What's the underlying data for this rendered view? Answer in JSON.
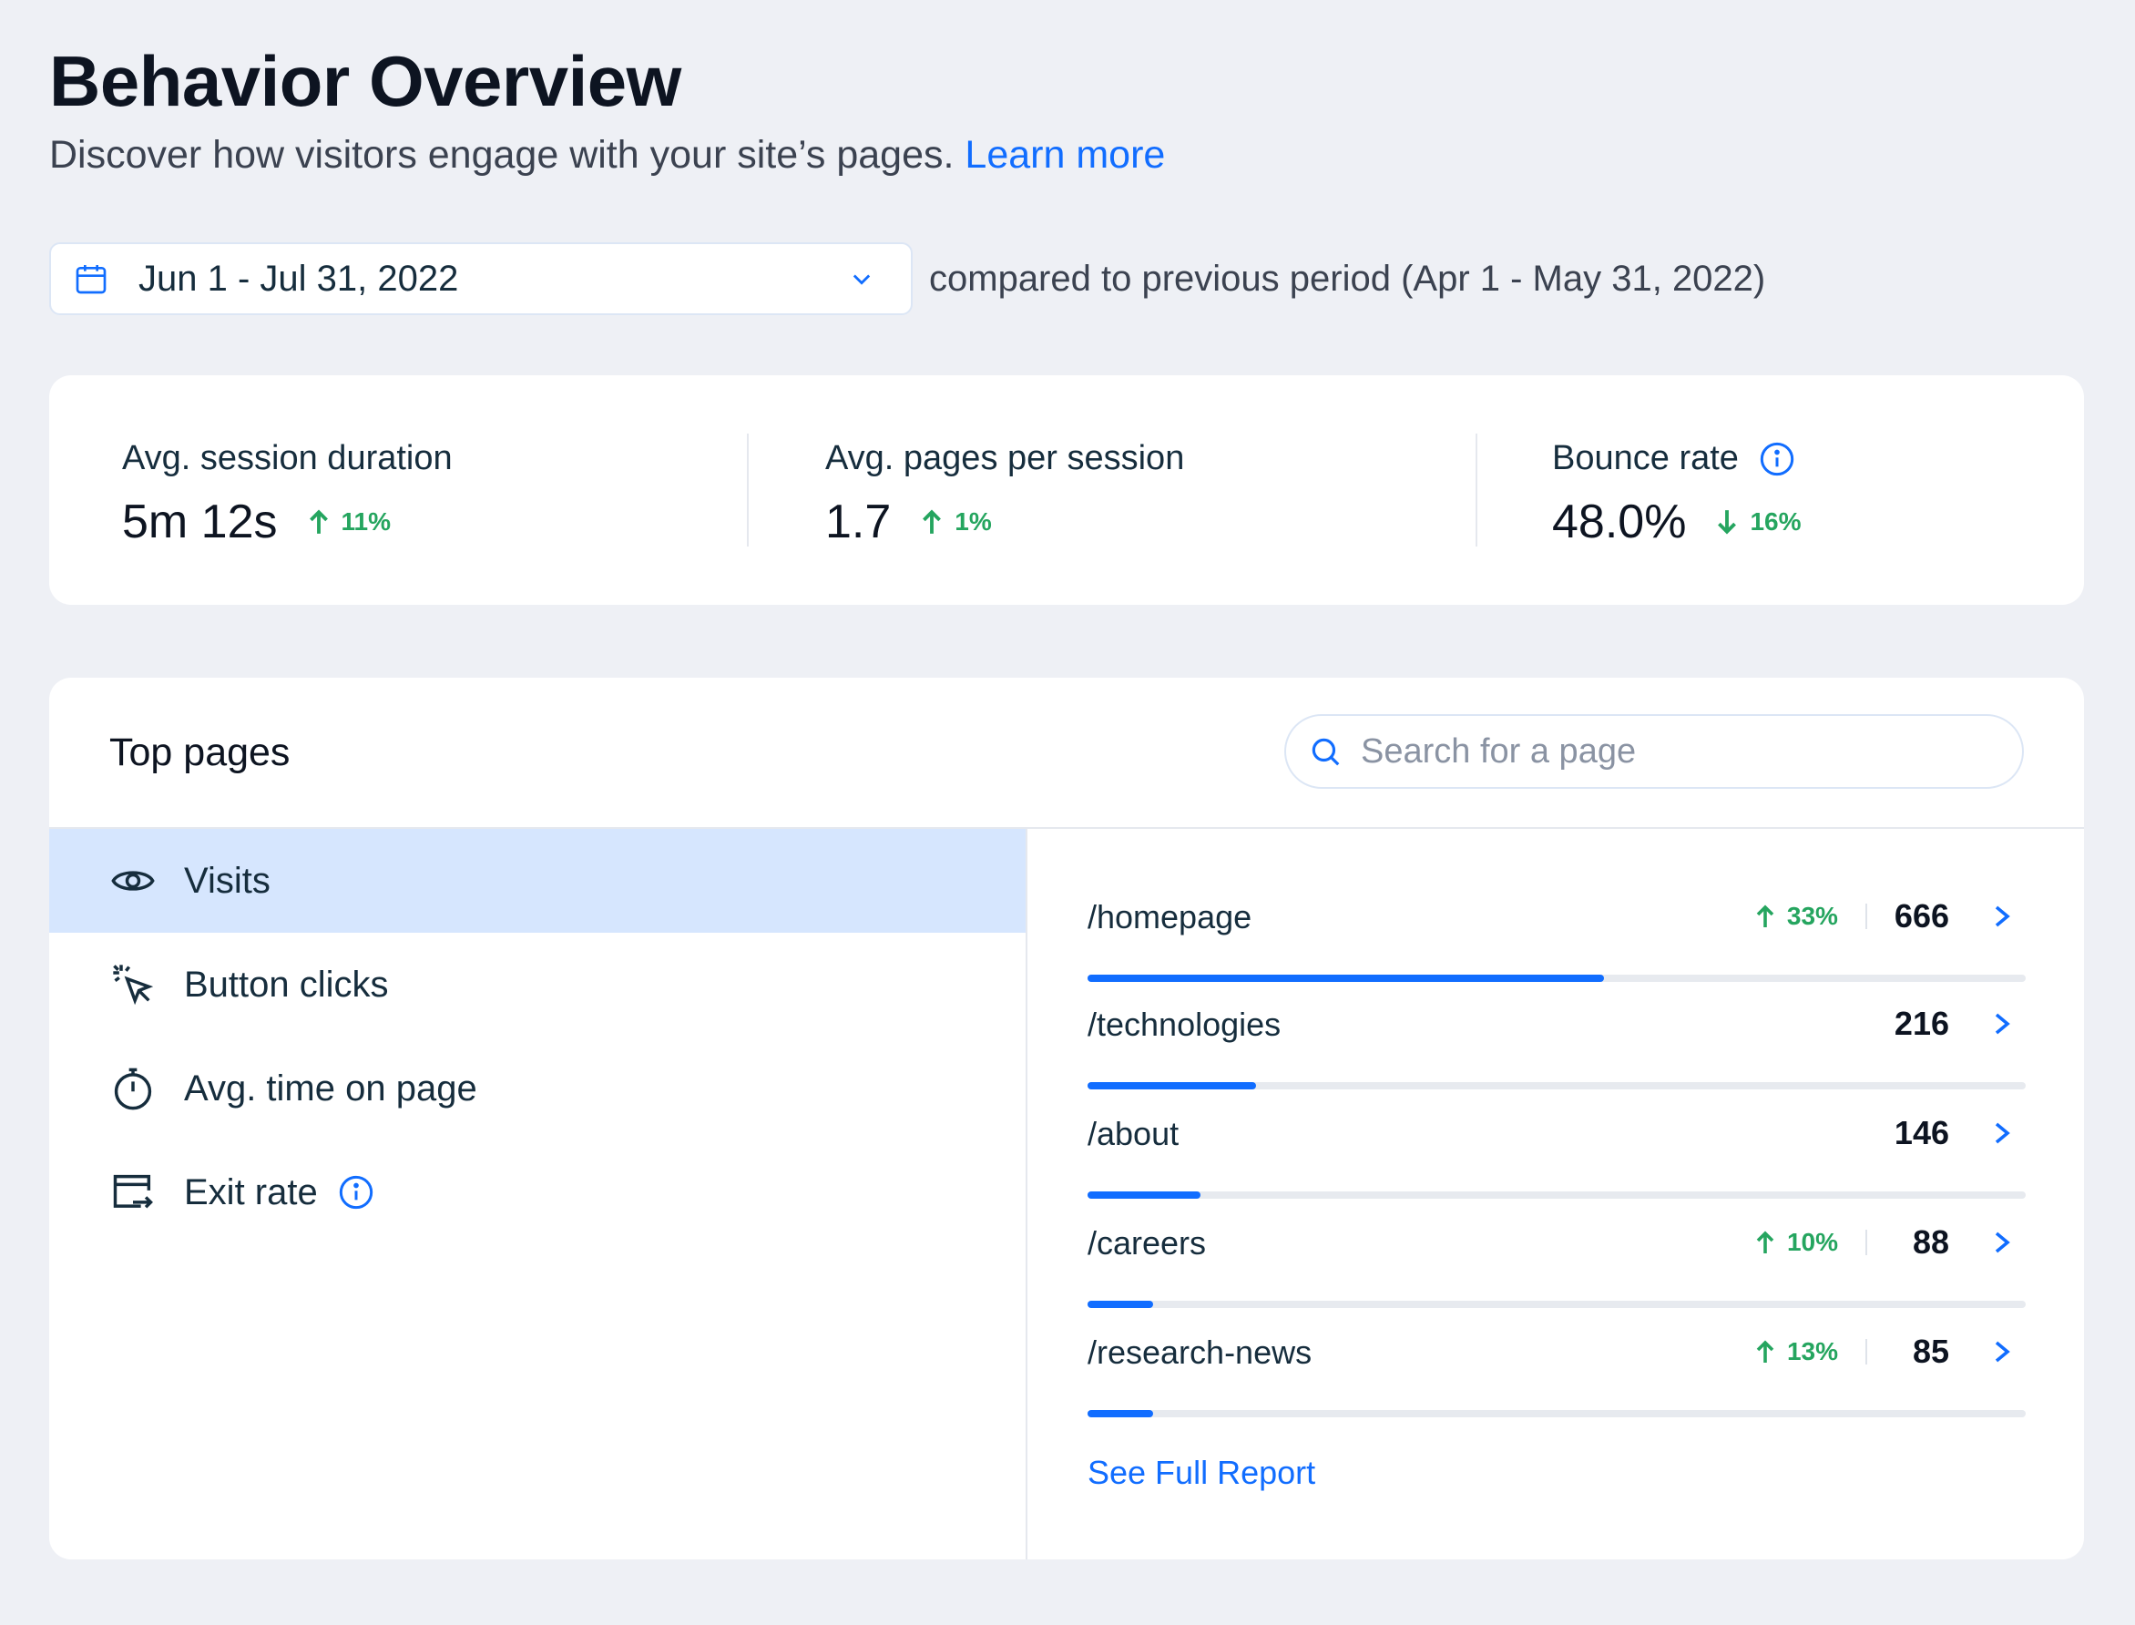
{
  "header": {
    "title": "Behavior Overview",
    "subtitle": "Discover how visitors engage with your site’s pages.",
    "learn_more": "Learn more"
  },
  "date_range": {
    "value": "Jun 1 - Jul 31, 2022",
    "comparison": "compared to previous period (Apr 1 - May 31, 2022)"
  },
  "kpis": [
    {
      "label": "Avg. session duration",
      "value": "5m 12s",
      "trend": "11%",
      "direction": "up"
    },
    {
      "label": "Avg. pages per session",
      "value": "1.7",
      "trend": "1%",
      "direction": "up"
    },
    {
      "label": "Bounce rate",
      "value": "48.0%",
      "trend": "16%",
      "direction": "down",
      "icon": "info-icon"
    }
  ],
  "top_pages": {
    "title": "Top pages",
    "search_placeholder": "Search for a page",
    "metrics": [
      {
        "label": "Visits",
        "icon": "eye-icon",
        "active": true
      },
      {
        "label": "Button clicks",
        "icon": "cursor-click-icon",
        "active": false
      },
      {
        "label": "Avg. time on page",
        "icon": "stopwatch-icon",
        "active": false
      },
      {
        "label": "Exit rate",
        "icon": "exit-icon",
        "active": false
      }
    ],
    "rows": [
      {
        "path": "/homepage",
        "trend": "33%",
        "value": "666",
        "share": 0.55
      },
      {
        "path": "/technologies",
        "trend": "",
        "value": "216",
        "share": 0.18
      },
      {
        "path": "/about",
        "trend": "",
        "value": "146",
        "share": 0.12
      },
      {
        "path": "/careers",
        "trend": "10%",
        "value": "88",
        "share": 0.07
      },
      {
        "path": "/research-news",
        "trend": "13%",
        "value": "85",
        "share": 0.07
      }
    ],
    "see_full_report": "See Full Report"
  },
  "colors": {
    "accent": "#116dff",
    "positive": "#25a55f",
    "active_bg": "#d6e6fe"
  }
}
